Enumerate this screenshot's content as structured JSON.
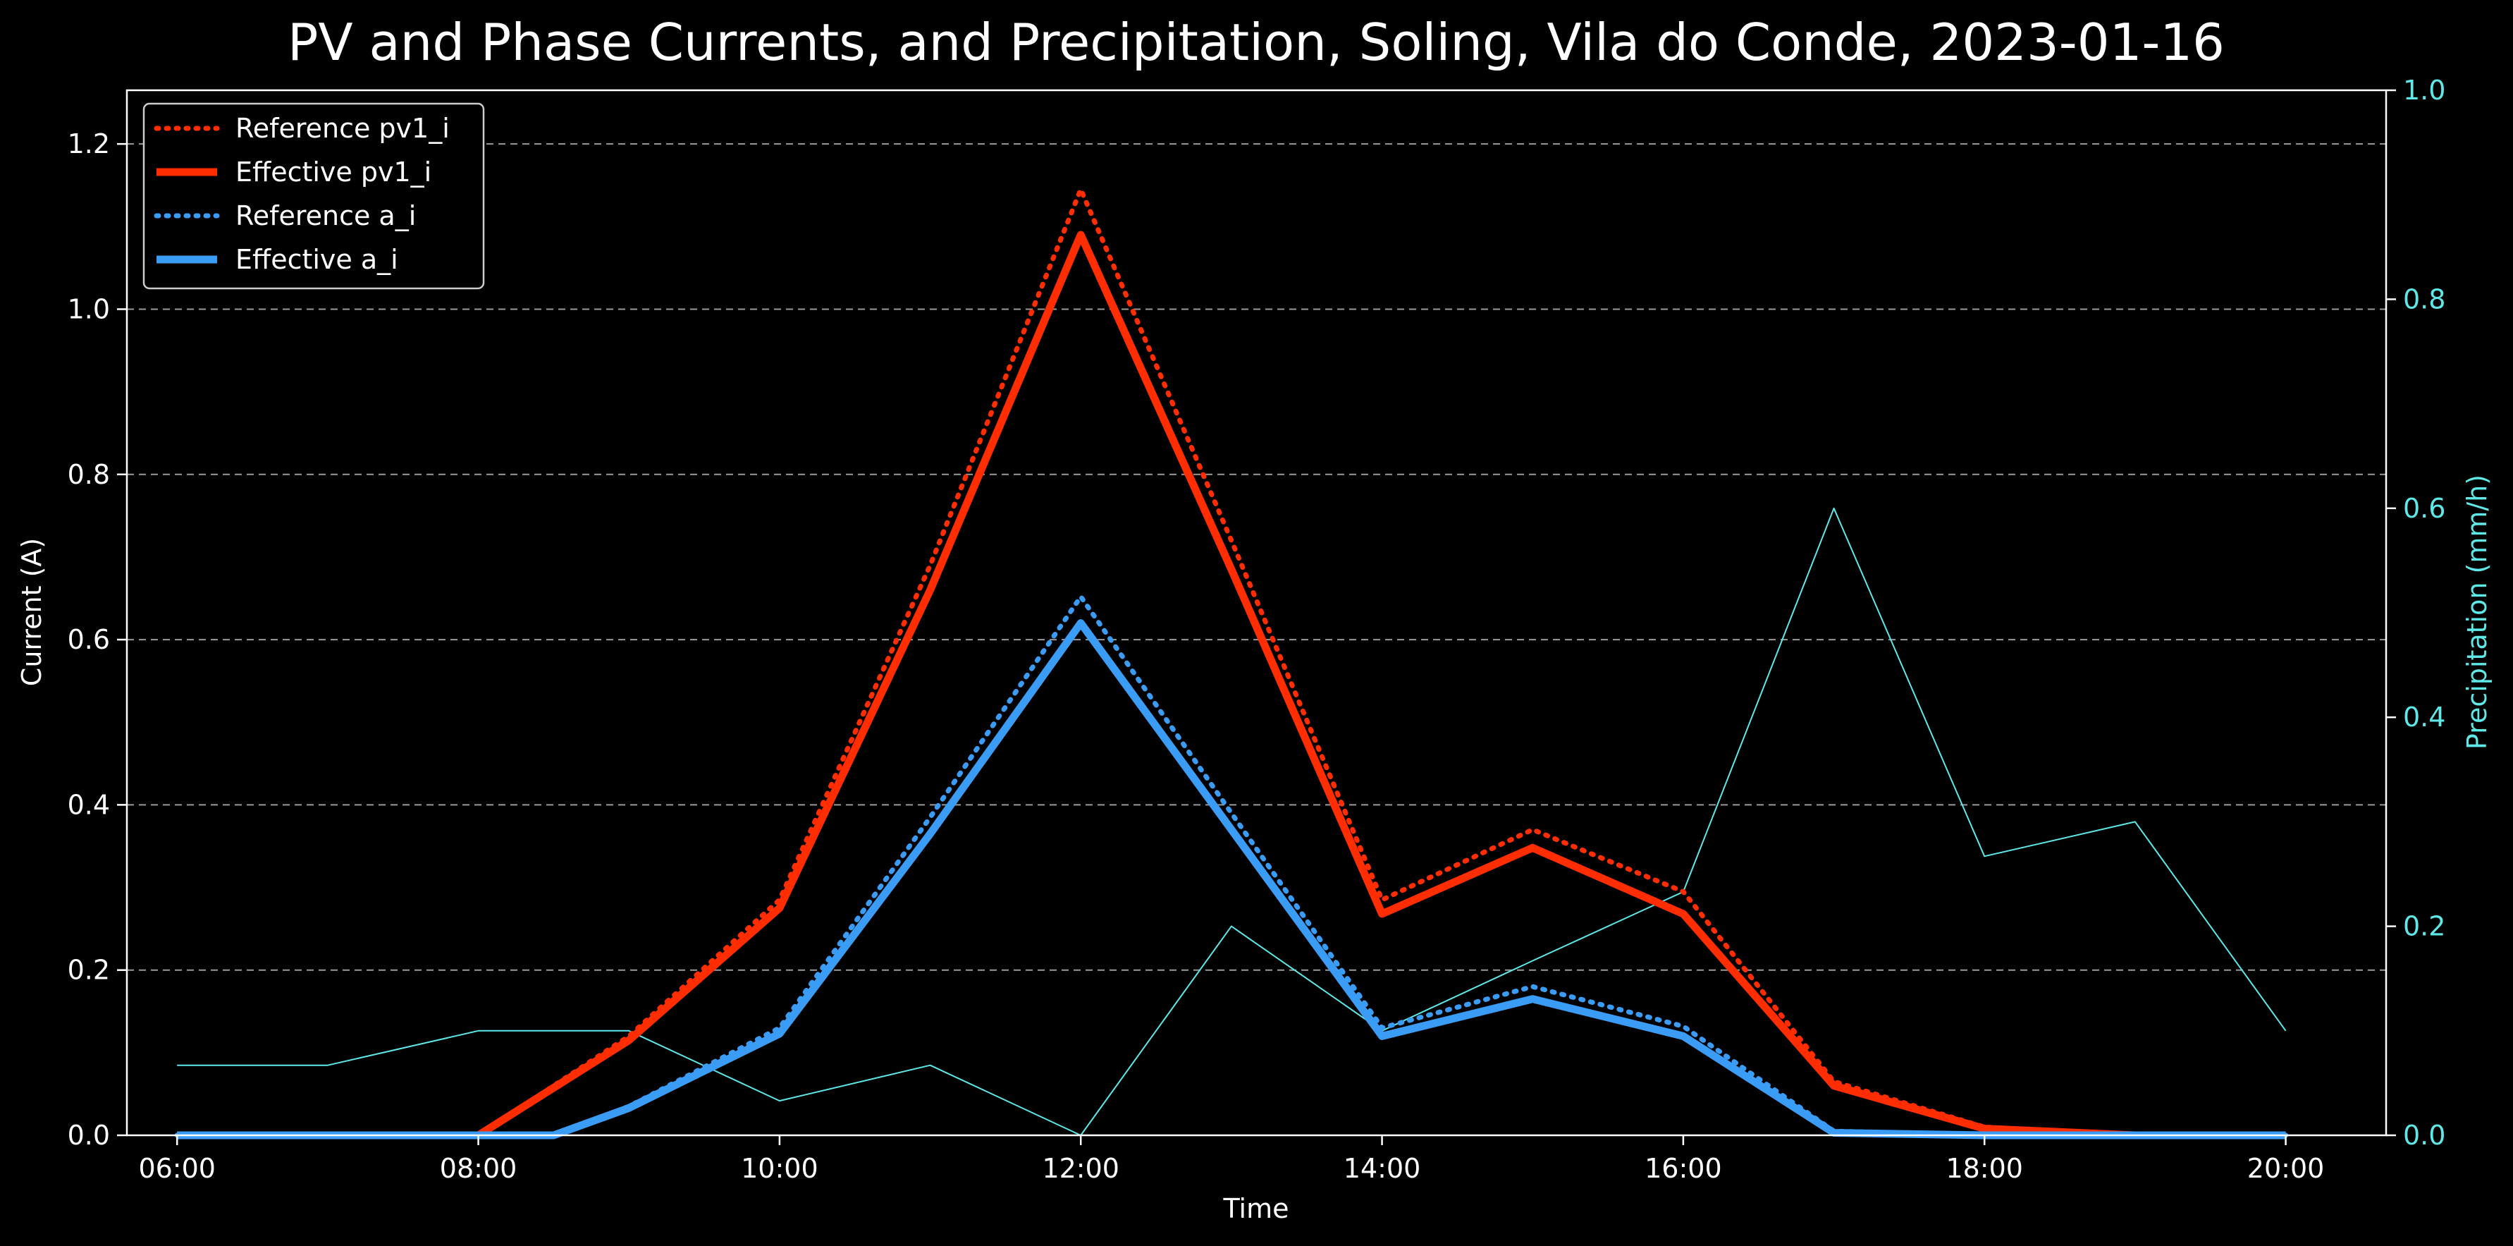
{
  "chart_data": {
    "type": "line",
    "title": "PV and Phase Currents, and Precipitation, Soling, Vila do Conde, 2023-01-16",
    "xlabel": "Time",
    "ylabel": "Current (A)",
    "y2label": "Precipitation (mm/h)",
    "ylim": [
      0,
      1.265
    ],
    "y2lim": [
      0,
      1.0
    ],
    "x_ticks": [
      "06:00",
      "08:00",
      "10:00",
      "12:00",
      "14:00",
      "16:00",
      "18:00",
      "20:00"
    ],
    "y_ticks": [
      "0.0",
      "0.2",
      "0.4",
      "0.6",
      "0.8",
      "1.0",
      "1.2"
    ],
    "y2_ticks": [
      "0.0",
      "0.2",
      "0.4",
      "0.6",
      "0.8",
      "1.0"
    ],
    "grid": "horizontal dashed",
    "legend_position": "top-left",
    "series": [
      {
        "name": "Reference pv1_i",
        "axis": "left",
        "style": "dotted",
        "color": "#ff2d00",
        "points": [
          [
            "06:00",
            0
          ],
          [
            "07:00",
            0
          ],
          [
            "08:00",
            0
          ],
          [
            "09:00",
            0.12
          ],
          [
            "10:00",
            0.285
          ],
          [
            "11:00",
            0.69
          ],
          [
            "12:00",
            1.145
          ],
          [
            "13:00",
            0.72
          ],
          [
            "14:00",
            0.285
          ],
          [
            "15:00",
            0.37
          ],
          [
            "16:00",
            0.295
          ],
          [
            "17:00",
            0.065
          ],
          [
            "18:00",
            0.01
          ],
          [
            "19:00",
            0
          ],
          [
            "20:00",
            0
          ]
        ]
      },
      {
        "name": "Effective pv1_i",
        "axis": "left",
        "style": "solid-thick",
        "color": "#ff2d00",
        "points": [
          [
            "06:00",
            0
          ],
          [
            "07:00",
            0
          ],
          [
            "08:00",
            0
          ],
          [
            "09:00",
            0.115
          ],
          [
            "10:00",
            0.275
          ],
          [
            "11:00",
            0.66
          ],
          [
            "12:00",
            1.09
          ],
          [
            "13:00",
            0.685
          ],
          [
            "14:00",
            0.268
          ],
          [
            "15:00",
            0.348
          ],
          [
            "16:00",
            0.268
          ],
          [
            "17:00",
            0.06
          ],
          [
            "18:00",
            0.008
          ],
          [
            "19:00",
            0
          ],
          [
            "20:00",
            0
          ]
        ]
      },
      {
        "name": "Reference a_i",
        "axis": "left",
        "style": "dotted",
        "color": "#3a9cf5",
        "points": [
          [
            "06:00",
            0
          ],
          [
            "07:00",
            0
          ],
          [
            "08:00",
            0
          ],
          [
            "08:30",
            0
          ],
          [
            "09:00",
            0.035
          ],
          [
            "10:00",
            0.13
          ],
          [
            "11:00",
            0.385
          ],
          [
            "12:00",
            0.652
          ],
          [
            "13:00",
            0.39
          ],
          [
            "14:00",
            0.13
          ],
          [
            "15:00",
            0.18
          ],
          [
            "16:00",
            0.132
          ],
          [
            "17:00",
            0.005
          ],
          [
            "18:00",
            0
          ],
          [
            "19:00",
            0
          ],
          [
            "20:00",
            0
          ]
        ]
      },
      {
        "name": "Effective a_i",
        "axis": "left",
        "style": "solid-thick",
        "color": "#3a9cf5",
        "points": [
          [
            "06:00",
            0
          ],
          [
            "07:00",
            0
          ],
          [
            "08:00",
            0
          ],
          [
            "08:30",
            0
          ],
          [
            "09:00",
            0.033
          ],
          [
            "10:00",
            0.123
          ],
          [
            "11:00",
            0.365
          ],
          [
            "12:00",
            0.62
          ],
          [
            "13:00",
            0.37
          ],
          [
            "14:00",
            0.12
          ],
          [
            "15:00",
            0.165
          ],
          [
            "16:00",
            0.12
          ],
          [
            "17:00",
            0.003
          ],
          [
            "18:00",
            0
          ],
          [
            "19:00",
            0
          ],
          [
            "20:00",
            0
          ]
        ]
      },
      {
        "axis": "right",
        "style": "solid-thin",
        "color": "#5ee8e8",
        "points": [
          [
            "06:00",
            0.067
          ],
          [
            "07:00",
            0.067
          ],
          [
            "08:00",
            0.1
          ],
          [
            "09:00",
            0.1
          ],
          [
            "10:00",
            0.033
          ],
          [
            "11:00",
            0.067
          ],
          [
            "12:00",
            0.0
          ],
          [
            "13:00",
            0.2
          ],
          [
            "14:00",
            0.1
          ],
          [
            "15:00",
            0.167
          ],
          [
            "16:00",
            0.233
          ],
          [
            "17:00",
            0.6
          ],
          [
            "18:00",
            0.267
          ],
          [
            "19:00",
            0.3
          ],
          [
            "20:00",
            0.1
          ]
        ]
      }
    ],
    "legend": [
      "Reference pv1_i",
      "Effective pv1_i",
      "Reference a_i",
      "Effective a_i"
    ]
  }
}
